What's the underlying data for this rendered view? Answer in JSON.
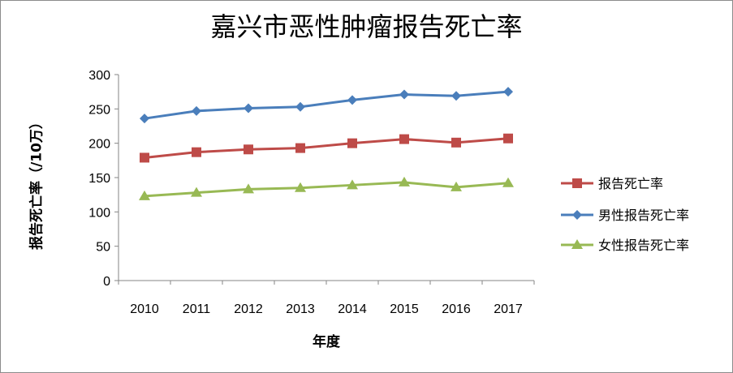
{
  "chart_data": {
    "type": "line",
    "title": "嘉兴市恶性肿瘤报告死亡率",
    "xlabel": "年度",
    "ylabel": "报告死亡率（/10万）",
    "categories": [
      "2010",
      "2011",
      "2012",
      "2013",
      "2014",
      "2015",
      "2016",
      "2017"
    ],
    "ylim": [
      0,
      300
    ],
    "yticks": [
      "0",
      "50",
      "100",
      "150",
      "200",
      "250",
      "300"
    ],
    "grid": false,
    "legend_position": "right",
    "series": [
      {
        "name": "报告死亡率",
        "values": [
          179,
          187,
          191,
          193,
          200,
          206,
          201,
          207
        ],
        "color": "#BE4B48",
        "marker": "square"
      },
      {
        "name": "男性报告死亡率",
        "values": [
          236,
          247,
          251,
          253,
          263,
          271,
          269,
          275
        ],
        "color": "#4A7EBB",
        "marker": "diamond"
      },
      {
        "name": "女性报告死亡率",
        "values": [
          123,
          128,
          133,
          135,
          139,
          143,
          136,
          142
        ],
        "color": "#98B954",
        "marker": "triangle"
      }
    ]
  }
}
